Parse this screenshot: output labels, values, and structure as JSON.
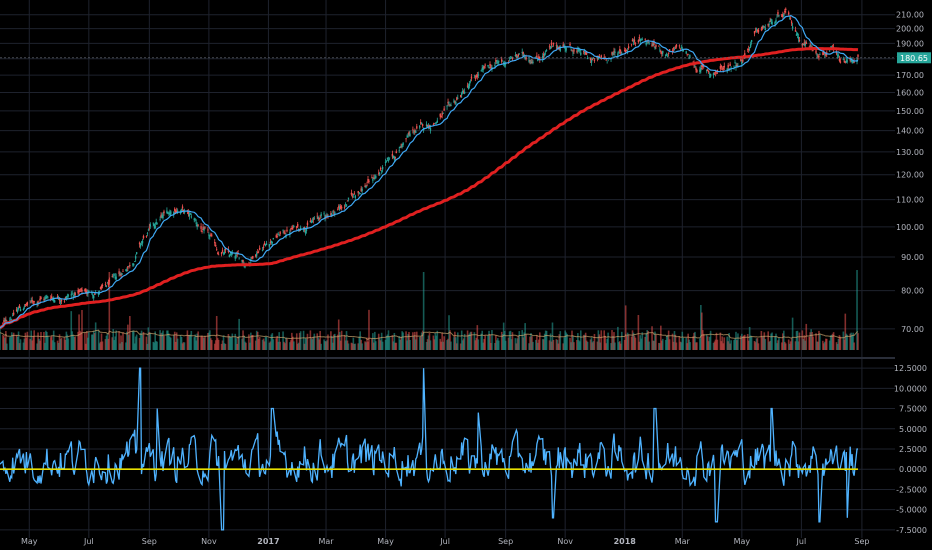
{
  "chart_data": [
    {
      "type": "candlestick",
      "panel": "price",
      "x_range": [
        "2016-04-01",
        "2018-08-28"
      ],
      "y_scale": "log",
      "ylim": [
        65,
        215
      ],
      "y_ticks": [
        "210.00",
        "200.00",
        "190.00",
        "180.00",
        "170.00",
        "160.00",
        "150.00",
        "140.00",
        "130.00",
        "120.00",
        "110.00",
        "100.00",
        "90.00",
        "80.00",
        "70.00"
      ],
      "last_price_label": "180.65",
      "last_price": 180.65,
      "price_path": [
        [
          "2016-04-01",
          70
        ],
        [
          "2016-04-20",
          75
        ],
        [
          "2016-05-15",
          78
        ],
        [
          "2016-06-15",
          79
        ],
        [
          "2016-07-15",
          80
        ],
        [
          "2016-08-01",
          84
        ],
        [
          "2016-08-15",
          89
        ],
        [
          "2016-08-25",
          95
        ],
        [
          "2016-09-05",
          100
        ],
        [
          "2016-09-20",
          105
        ],
        [
          "2016-10-01",
          107
        ],
        [
          "2016-10-15",
          103
        ],
        [
          "2016-10-30",
          97
        ],
        [
          "2016-11-10",
          92
        ],
        [
          "2016-11-25",
          90
        ],
        [
          "2016-12-10",
          88
        ],
        [
          "2016-12-22",
          93
        ],
        [
          "2017-01-10",
          97
        ],
        [
          "2017-01-25",
          99
        ],
        [
          "2017-02-15",
          102
        ],
        [
          "2017-03-01",
          104
        ],
        [
          "2017-03-20",
          108
        ],
        [
          "2017-04-05",
          114
        ],
        [
          "2017-04-25",
          121
        ],
        [
          "2017-05-10",
          128
        ],
        [
          "2017-05-20",
          135
        ],
        [
          "2017-06-01",
          140
        ],
        [
          "2017-06-15",
          143
        ],
        [
          "2017-07-01",
          148
        ],
        [
          "2017-07-20",
          160
        ],
        [
          "2017-08-05",
          170
        ],
        [
          "2017-08-20",
          176
        ],
        [
          "2017-09-01",
          178
        ],
        [
          "2017-09-15",
          182
        ],
        [
          "2017-10-01",
          181
        ],
        [
          "2017-10-15",
          185
        ],
        [
          "2017-11-01",
          189
        ],
        [
          "2017-11-15",
          184
        ],
        [
          "2017-12-01",
          178
        ],
        [
          "2017-12-15",
          181
        ],
        [
          "2018-01-01",
          186
        ],
        [
          "2018-01-15",
          195
        ],
        [
          "2018-02-01",
          188
        ],
        [
          "2018-02-15",
          183
        ],
        [
          "2018-03-01",
          186
        ],
        [
          "2018-03-15",
          175
        ],
        [
          "2018-04-01",
          171
        ],
        [
          "2018-04-15",
          175
        ],
        [
          "2018-05-01",
          180
        ],
        [
          "2018-05-15",
          196
        ],
        [
          "2018-06-01",
          204
        ],
        [
          "2018-06-15",
          209
        ],
        [
          "2018-07-01",
          192
        ],
        [
          "2018-07-15",
          186
        ],
        [
          "2018-08-01",
          185
        ],
        [
          "2018-08-10",
          176
        ],
        [
          "2018-08-20",
          178
        ],
        [
          "2018-08-28",
          180.65
        ]
      ],
      "ma_short_color": "#3fa9f5",
      "ma_long_color": "#e02020",
      "up_color": "#26a69a",
      "down_color": "#ef5350"
    },
    {
      "type": "bar",
      "panel": "volume",
      "up_color": "#26a69a",
      "down_color": "#ef5350",
      "ma_color": "#c9a26b"
    },
    {
      "type": "line",
      "panel": "oscillator",
      "ylim": [
        -8.5,
        13.5
      ],
      "y_ticks": [
        "12.5000",
        "10.0000",
        "7.5000",
        "5.0000",
        "2.5000",
        "0.0000",
        "-2.5000",
        "-5.0000",
        "-7.5000"
      ],
      "zero_line_color": "#e8e000",
      "line_color": "#4fb3ff",
      "spikes": [
        [
          "2016-08-22",
          12.5
        ],
        [
          "2016-09-10",
          7.5
        ],
        [
          "2016-11-15",
          -7.5
        ],
        [
          "2017-01-05",
          7.5
        ],
        [
          "2017-06-10",
          12.5
        ],
        [
          "2017-08-05",
          7.0
        ],
        [
          "2017-10-20",
          -6.0
        ],
        [
          "2018-02-01",
          7.5
        ],
        [
          "2018-04-05",
          -6.5
        ],
        [
          "2018-06-01",
          7.5
        ],
        [
          "2018-07-20",
          -6.5
        ],
        [
          "2018-08-18",
          -6.0
        ],
        [
          "2018-08-27",
          2.5
        ]
      ]
    }
  ],
  "x_axis": {
    "labels": [
      {
        "text": "May",
        "date": "2016-05-01"
      },
      {
        "text": "Jul",
        "date": "2016-07-01"
      },
      {
        "text": "Sep",
        "date": "2016-09-01"
      },
      {
        "text": "Nov",
        "date": "2016-11-01"
      },
      {
        "text": "2017",
        "date": "2017-01-01",
        "bold": true
      },
      {
        "text": "Mar",
        "date": "2017-03-01"
      },
      {
        "text": "May",
        "date": "2017-05-01"
      },
      {
        "text": "Jul",
        "date": "2017-07-01"
      },
      {
        "text": "Sep",
        "date": "2017-09-01"
      },
      {
        "text": "Nov",
        "date": "2017-11-01"
      },
      {
        "text": "2018",
        "date": "2018-01-01",
        "bold": true
      },
      {
        "text": "Mar",
        "date": "2018-03-01"
      },
      {
        "text": "May",
        "date": "2018-05-01"
      },
      {
        "text": "Jul",
        "date": "2018-07-01"
      },
      {
        "text": "Sep",
        "date": "2018-09-01"
      }
    ]
  }
}
